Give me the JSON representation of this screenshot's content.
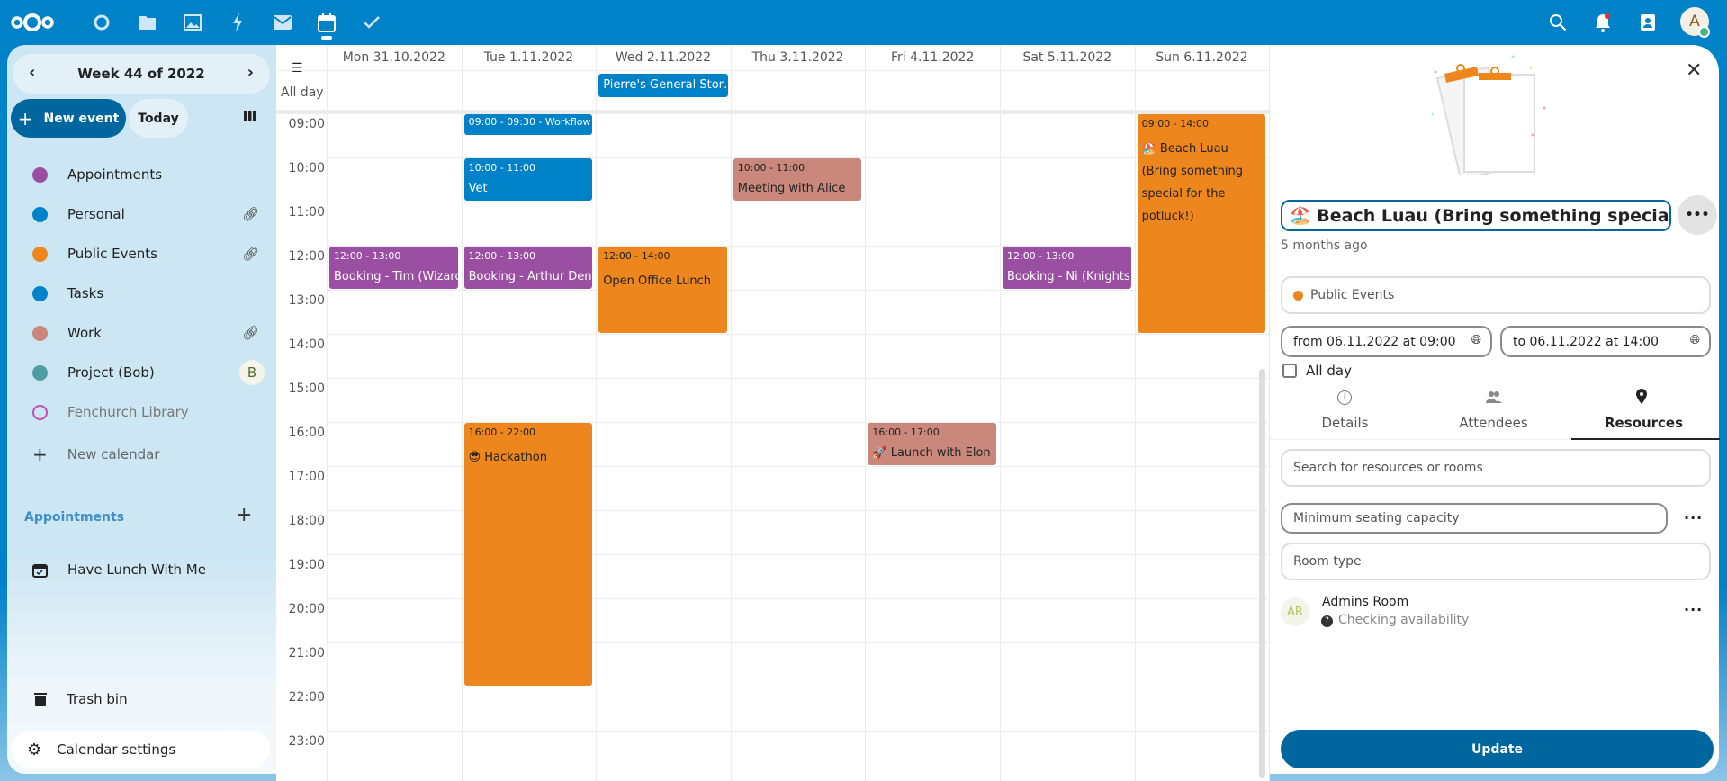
{
  "topbar": {
    "apps": [
      "dashboard-icon",
      "files-icon",
      "photos-icon",
      "activity-icon",
      "mail-icon",
      "calendar-icon",
      "tasks-icon"
    ],
    "right": [
      "search-icon",
      "notifications-icon",
      "contacts-icon"
    ],
    "avatar_letter": "A"
  },
  "sidebar": {
    "week_label": "Week 44 of 2022",
    "new_event": "New event",
    "today": "Today",
    "calendars": [
      {
        "label": "Appointments",
        "color": "#9b4fa3",
        "shared": false
      },
      {
        "label": "Personal",
        "color": "#0082c9",
        "shared": true
      },
      {
        "label": "Public Events",
        "color": "#ed861c",
        "shared": true
      },
      {
        "label": "Tasks",
        "color": "#0082c9",
        "shared": false
      },
      {
        "label": "Work",
        "color": "#c9887b",
        "shared": true
      },
      {
        "label": "Project (Bob)",
        "color": "#4d9da3",
        "shared": false,
        "owner_initial": "B"
      },
      {
        "label": "Fenchurch Library",
        "color": "#c14fb0",
        "shared": false,
        "disabled": true
      }
    ],
    "new_calendar": "New calendar",
    "appointments_heading": "Appointments",
    "appointment_item": "Have Lunch With Me",
    "trash": "Trash bin",
    "settings": "Calendar settings"
  },
  "calendar": {
    "all_day_label": "All day",
    "days": [
      "Mon 31.10.2022",
      "Tue 1.11.2022",
      "Wed 2.11.2022",
      "Thu 3.11.2022",
      "Fri 4.11.2022",
      "Sat 5.11.2022",
      "Sun 6.11.2022"
    ],
    "hours": [
      "09:00",
      "10:00",
      "11:00",
      "12:00",
      "13:00",
      "14:00",
      "15:00",
      "16:00",
      "17:00",
      "18:00",
      "19:00",
      "20:00",
      "21:00",
      "22:00",
      "23:00"
    ],
    "all_day_events": [
      {
        "day": 2,
        "title": "Pierre's General Stor…",
        "color": "#0082c9"
      }
    ],
    "events": [
      {
        "day": 1,
        "start": 9,
        "end": 9.5,
        "time": "09:00 - 09:30 - Workflow",
        "title": "",
        "color": "#0082c9",
        "text": "#fff"
      },
      {
        "day": 1,
        "start": 10,
        "end": 11,
        "time": "10:00 - 11:00",
        "title": "Vet",
        "color": "#0082c9",
        "text": "#fff"
      },
      {
        "day": 3,
        "start": 10,
        "end": 11,
        "time": "10:00 - 11:00",
        "title": "Meeting with Alice",
        "color": "#c9887b",
        "text": "#222"
      },
      {
        "day": 0,
        "start": 12,
        "end": 13,
        "time": "12:00 - 13:00",
        "title": "Booking - Tim (Wizard)",
        "color": "#9b4fa3",
        "text": "#fff"
      },
      {
        "day": 1,
        "start": 12,
        "end": 13,
        "time": "12:00 - 13:00",
        "title": "Booking - Arthur Dent",
        "color": "#9b4fa3",
        "text": "#fff"
      },
      {
        "day": 2,
        "start": 12,
        "end": 14,
        "time": "12:00 - 14:00",
        "title": "Open Office Lunch",
        "color": "#ed861c",
        "text": "#222"
      },
      {
        "day": 5,
        "start": 12,
        "end": 13,
        "time": "12:00 - 13:00",
        "title": "Booking - Ni (Knights",
        "color": "#9b4fa3",
        "text": "#fff"
      },
      {
        "day": 6,
        "start": 9,
        "end": 14,
        "time": "09:00 - 14:00",
        "title": "🏖️ Beach Luau (Bring something special for the potluck!)",
        "color": "#ed861c",
        "text": "#222"
      },
      {
        "day": 1,
        "start": 16,
        "end": 22,
        "time": "16:00 - 22:00",
        "title": "😎 Hackathon",
        "color": "#ed861c",
        "text": "#222"
      },
      {
        "day": 4,
        "start": 16,
        "end": 17,
        "time": "16:00 - 17:00",
        "title": "🚀 Launch with Elon",
        "color": "#c9887b",
        "text": "#222"
      }
    ]
  },
  "panel": {
    "title": "🏖️ Beach Luau (Bring something special for",
    "modified": "5 months ago",
    "calendar": "Public Events",
    "calendar_color": "#ed861c",
    "from": "from 06.11.2022 at 09:00",
    "to": "to 06.11.2022 at 14:00",
    "all_day": "All day",
    "tabs": [
      "Details",
      "Attendees",
      "Resources"
    ],
    "active_tab": "Resources",
    "search_placeholder": "Search for resources or rooms",
    "capacity_placeholder": "Minimum seating capacity",
    "room_type_placeholder": "Room type",
    "resource": {
      "initials": "AR",
      "name": "Admins Room",
      "status": "Checking availability"
    },
    "update": "Update"
  }
}
